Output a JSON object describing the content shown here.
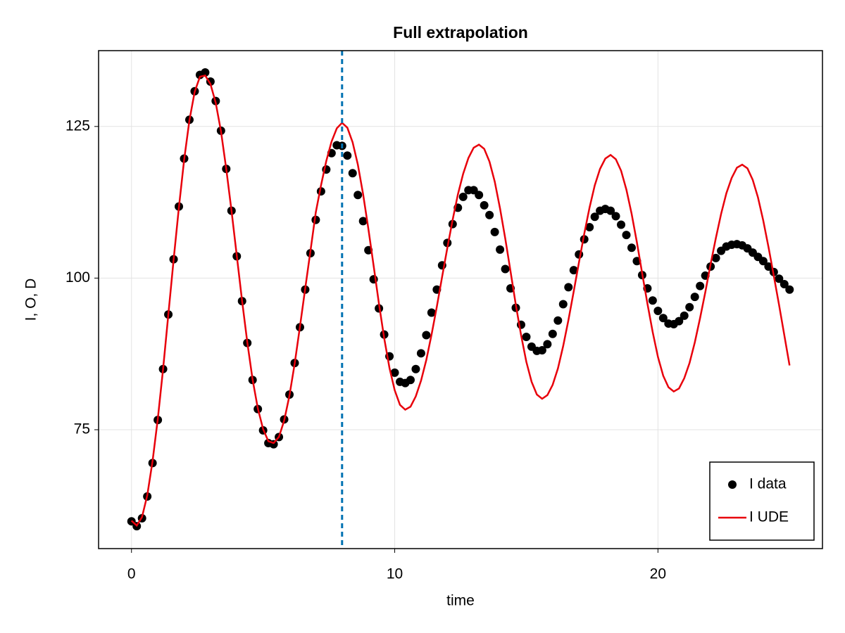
{
  "chart_data": {
    "type": "line",
    "title": "Full extrapolation",
    "xlabel": "time",
    "ylabel": "I, O, D",
    "x": [
      0,
      0.2,
      0.4,
      0.6,
      0.8,
      1,
      1.2,
      1.4,
      1.6,
      1.8,
      2,
      2.2,
      2.4,
      2.6,
      2.8,
      3,
      3.2,
      3.4,
      3.6,
      3.8,
      4,
      4.2,
      4.4,
      4.6,
      4.8,
      5,
      5.2,
      5.4,
      5.6,
      5.8,
      6,
      6.2,
      6.4,
      6.6,
      6.8,
      7,
      7.2,
      7.4,
      7.6,
      7.8,
      8,
      8.2,
      8.4,
      8.6,
      8.8,
      9,
      9.2,
      9.4,
      9.6,
      9.8,
      10,
      10.2,
      10.4,
      10.6,
      10.8,
      11,
      11.2,
      11.4,
      11.6,
      11.8,
      12,
      12.2,
      12.4,
      12.6,
      12.8,
      13,
      13.2,
      13.4,
      13.6,
      13.8,
      14,
      14.2,
      14.4,
      14.6,
      14.8,
      15,
      15.2,
      15.4,
      15.6,
      15.8,
      16,
      16.2,
      16.4,
      16.6,
      16.8,
      17,
      17.2,
      17.4,
      17.6,
      17.8,
      18,
      18.2,
      18.4,
      18.6,
      18.8,
      19,
      19.2,
      19.4,
      19.6,
      19.8,
      20,
      20.2,
      20.4,
      20.6,
      20.8,
      21,
      21.2,
      21.4,
      21.6,
      21.8,
      22,
      22.2,
      22.4,
      22.6,
      22.8,
      23,
      23.2,
      23.4,
      23.6,
      23.8,
      24,
      24.2,
      24.4,
      24.6,
      24.8,
      25
    ],
    "series": [
      {
        "name": "I data",
        "type": "scatter",
        "color": "#000000",
        "values": [
          59.9,
          59.1,
          60.4,
          64.0,
          69.5,
          76.6,
          85.0,
          94.0,
          103.1,
          111.8,
          119.7,
          126.1,
          130.8,
          133.5,
          133.9,
          132.4,
          129.2,
          124.3,
          118.0,
          111.1,
          103.6,
          96.2,
          89.3,
          83.2,
          78.4,
          74.9,
          72.8,
          72.6,
          73.8,
          76.7,
          80.8,
          86.0,
          91.9,
          98.1,
          104.1,
          109.6,
          114.3,
          117.9,
          120.6,
          121.9,
          121.8,
          120.2,
          117.3,
          113.7,
          109.4,
          104.6,
          99.8,
          95.0,
          90.7,
          87.1,
          84.4,
          82.9,
          82.7,
          83.2,
          85.0,
          87.6,
          90.6,
          94.3,
          98.1,
          102.1,
          105.8,
          108.9,
          111.6,
          113.4,
          114.5,
          114.5,
          113.7,
          112.0,
          110.4,
          107.6,
          104.7,
          101.5,
          98.3,
          95.1,
          92.3,
          90.3,
          88.7,
          88.0,
          88.1,
          89.1,
          90.8,
          93.0,
          95.7,
          98.5,
          101.3,
          103.9,
          106.4,
          108.4,
          110.1,
          111.1,
          111.4,
          111.1,
          110.2,
          108.8,
          107.1,
          105.0,
          102.8,
          100.5,
          98.3,
          96.3,
          94.6,
          93.4,
          92.5,
          92.4,
          92.9,
          93.8,
          95.2,
          96.9,
          98.7,
          100.4,
          101.9,
          103.3,
          104.5,
          105.2,
          105.5,
          105.6,
          105.4,
          104.9,
          104.2,
          103.5,
          102.8,
          101.9,
          101.0,
          99.9,
          99.0,
          98.1
        ]
      },
      {
        "name": "I UDE",
        "type": "line",
        "color": "#e8000b",
        "values": [
          60.0,
          59.2,
          60.6,
          64.2,
          69.8,
          76.8,
          85.0,
          94.0,
          103.0,
          111.6,
          119.5,
          126.0,
          130.7,
          133.2,
          133.4,
          132.0,
          128.9,
          124.2,
          118.0,
          111.1,
          103.7,
          96.3,
          89.4,
          83.3,
          78.5,
          75.1,
          73.1,
          72.8,
          73.8,
          76.5,
          80.6,
          85.9,
          92.0,
          98.3,
          104.5,
          110.8,
          115.3,
          119.3,
          122.5,
          124.7,
          125.6,
          124.8,
          122.4,
          118.7,
          113.8,
          108.1,
          102.0,
          95.8,
          90.1,
          85.2,
          81.5,
          79.1,
          78.3,
          78.8,
          80.5,
          83.1,
          86.5,
          90.7,
          95.3,
          100.2,
          105.0,
          109.6,
          113.8,
          117.2,
          119.8,
          121.5,
          122.0,
          121.3,
          119.2,
          115.9,
          111.5,
          106.5,
          101.1,
          95.6,
          90.6,
          86.2,
          82.9,
          80.8,
          80.1,
          80.7,
          82.4,
          85.1,
          88.8,
          93.1,
          97.8,
          102.6,
          107.3,
          111.6,
          115.3,
          118.0,
          119.7,
          120.3,
          119.6,
          117.7,
          114.6,
          110.6,
          105.9,
          100.8,
          95.8,
          91.1,
          87.0,
          83.9,
          82.0,
          81.3,
          81.8,
          83.5,
          86.0,
          89.4,
          93.4,
          97.7,
          102.3,
          106.6,
          110.6,
          114.0,
          116.5,
          118.2,
          118.7,
          118.1,
          116.2,
          113.3,
          109.5,
          105.1,
          100.4,
          95.6,
          90.6,
          85.6
        ]
      }
    ],
    "vline": {
      "x": 8,
      "color": "#0072b2"
    },
    "xlim": [
      -1.25,
      26.25
    ],
    "ylim": [
      55.4,
      137.5
    ],
    "xticks": [
      0,
      10,
      20
    ],
    "yticks": [
      75,
      100,
      125
    ],
    "grid": true,
    "legend": "bottom-right"
  }
}
